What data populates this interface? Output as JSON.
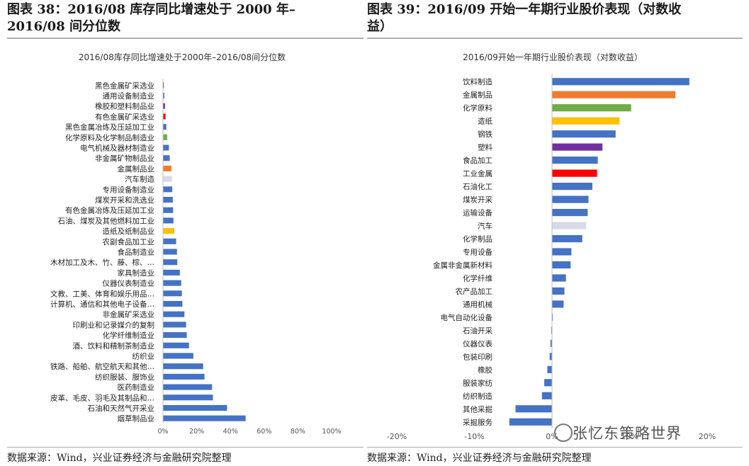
{
  "left_panel": {
    "title_line1": "图表 38：2016/08 库存同比增速处于 2000 年–",
    "title_line2": "2016/08 间分位数",
    "source": "数据来源：Wind，兴业证券经济与金融研究院整理"
  },
  "right_panel": {
    "title_line1": "图表 39：2016/09 开始一年期行业股价表现（对数收",
    "title_line2": "益）",
    "source": "数据来源：Wind，兴业证券经济与金融研究院整理"
  },
  "watermark": "张忆东策略世界",
  "colors": {
    "blue": "#4472C4",
    "orange": "#ED7D31",
    "green": "#70AD47",
    "yellow": "#FFC000",
    "purple": "#7030A0",
    "red": "#FF0000",
    "gray": "#D9D9E8"
  },
  "chart_data": [
    {
      "type": "bar",
      "orientation": "horizontal",
      "title": "2016/08库存同比增速处于2000年–2016/08间分位数",
      "xlim": [
        0,
        1
      ],
      "x_tick_labels": [
        "0%",
        "20%",
        "40%",
        "60%",
        "80%",
        "100%"
      ],
      "x_ticks": [
        0,
        0.2,
        0.4,
        0.6,
        0.8,
        1.0
      ],
      "categories": [
        "黑色金属矿采选业",
        "通用设备制造业",
        "橡胶和塑料制品业",
        "有色金属矿采选业",
        "黑色金属冶炼及压延加工业",
        "化学原料及化学制品制造业",
        "电气机械及器材制造业",
        "非金属矿物制品业",
        "金属制品业",
        "汽车制造",
        "专用设备制造业",
        "煤炭开采和洗选业",
        "有色金属冶炼及压延加工业",
        "石油、煤炭及其他燃料加工业",
        "造纸及纸制品业",
        "农副食品加工业",
        "食品制造业",
        "木材加工及木、竹、藤、棕、…",
        "家具制造业",
        "仪器仪表制造业",
        "文教、工美、体育和娱乐用品…",
        "计算机、通信和其他电子设备…",
        "非金属矿采选业",
        "印刷业和记录媒介的复制",
        "化学纤维制造业",
        "酒、饮料和精制茶制造业",
        "纺织业",
        "铁路、船舶、航空航天和其他…",
        "纺织服装、服饰业",
        "医药制造业",
        "皮革、毛皮、羽毛及其制品和…",
        "石油和天然气开采业",
        "烟草制品业"
      ],
      "values": [
        0.005,
        0.008,
        0.012,
        0.015,
        0.02,
        0.025,
        0.035,
        0.04,
        0.05,
        0.053,
        0.055,
        0.058,
        0.06,
        0.062,
        0.067,
        0.078,
        0.083,
        0.085,
        0.1,
        0.108,
        0.112,
        0.115,
        0.127,
        0.137,
        0.141,
        0.154,
        0.18,
        0.238,
        0.246,
        0.291,
        0.296,
        0.38,
        0.49
      ],
      "bar_colors": [
        "red",
        "blue",
        "purple",
        "red",
        "blue",
        "green",
        "blue",
        "blue",
        "orange",
        "gray",
        "blue",
        "blue",
        "blue",
        "blue",
        "yellow",
        "blue",
        "blue",
        "blue",
        "blue",
        "blue",
        "blue",
        "blue",
        "blue",
        "blue",
        "blue",
        "blue",
        "blue",
        "blue",
        "blue",
        "blue",
        "blue",
        "blue",
        "blue"
      ]
    },
    {
      "type": "bar",
      "orientation": "horizontal",
      "title": "2016/09开始一年期行业股价表现（对数收益）",
      "xlim": [
        -0.2,
        0.2
      ],
      "x_tick_labels": [
        "-20%",
        "-10%",
        "0%",
        "10%",
        "20%"
      ],
      "x_ticks": [
        -0.2,
        -0.1,
        0,
        0.1,
        0.2
      ],
      "categories": [
        "饮料制造",
        "金属制品",
        "化学原料",
        "造纸",
        "钢铁",
        "塑料",
        "食品加工",
        "工业金属",
        "石油化工",
        "煤炭开采",
        "运输设备",
        "汽车",
        "化学制品",
        "专用设备",
        "金属非金属新材料",
        "化学纤维",
        "农产品加工",
        "通用机械",
        "电气自动化设备",
        "石油开采",
        "仪器仪表",
        "包装印刷",
        "橡胶",
        "服装家纺",
        "纺织制造",
        "其他采掘",
        "采掘服务"
      ],
      "values": [
        0.177,
        0.159,
        0.102,
        0.087,
        0.082,
        0.065,
        0.059,
        0.058,
        0.052,
        0.047,
        0.046,
        0.044,
        0.039,
        0.025,
        0.024,
        0.018,
        0.016,
        0.015,
        0.001,
        -0.001,
        -0.002,
        -0.003,
        -0.006,
        -0.01,
        -0.013,
        -0.047,
        -0.055
      ],
      "bar_colors": [
        "blue",
        "orange",
        "green",
        "yellow",
        "blue",
        "purple",
        "blue",
        "red",
        "blue",
        "blue",
        "blue",
        "gray",
        "blue",
        "blue",
        "blue",
        "blue",
        "blue",
        "blue",
        "blue",
        "blue",
        "blue",
        "blue",
        "blue",
        "blue",
        "blue",
        "blue",
        "blue"
      ]
    }
  ]
}
